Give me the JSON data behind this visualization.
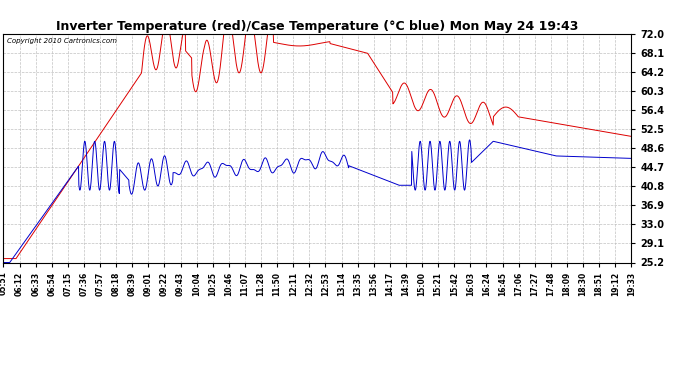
{
  "title": "Inverter Temperature (red)/Case Temperature (°C blue) Mon May 24 19:43",
  "copyright": "Copyright 2010 Cartronics.com",
  "ylabel_right": [
    "72.0",
    "68.1",
    "64.2",
    "60.3",
    "56.4",
    "52.5",
    "48.6",
    "44.7",
    "40.8",
    "36.9",
    "33.0",
    "29.1",
    "25.2"
  ],
  "ymin": 25.2,
  "ymax": 72.0,
  "background_color": "#ffffff",
  "grid_color": "#bbbbbb",
  "red_color": "#dd0000",
  "blue_color": "#0000cc",
  "x_labels": [
    "05:51",
    "06:12",
    "06:33",
    "06:54",
    "07:15",
    "07:36",
    "07:57",
    "08:18",
    "08:39",
    "09:01",
    "09:22",
    "09:43",
    "10:04",
    "10:25",
    "10:46",
    "11:07",
    "11:28",
    "11:50",
    "12:11",
    "12:32",
    "12:53",
    "13:14",
    "13:35",
    "13:56",
    "14:17",
    "14:39",
    "15:00",
    "15:21",
    "15:42",
    "16:03",
    "16:24",
    "16:45",
    "17:06",
    "17:27",
    "17:48",
    "18:09",
    "18:30",
    "18:51",
    "19:12",
    "19:33"
  ]
}
